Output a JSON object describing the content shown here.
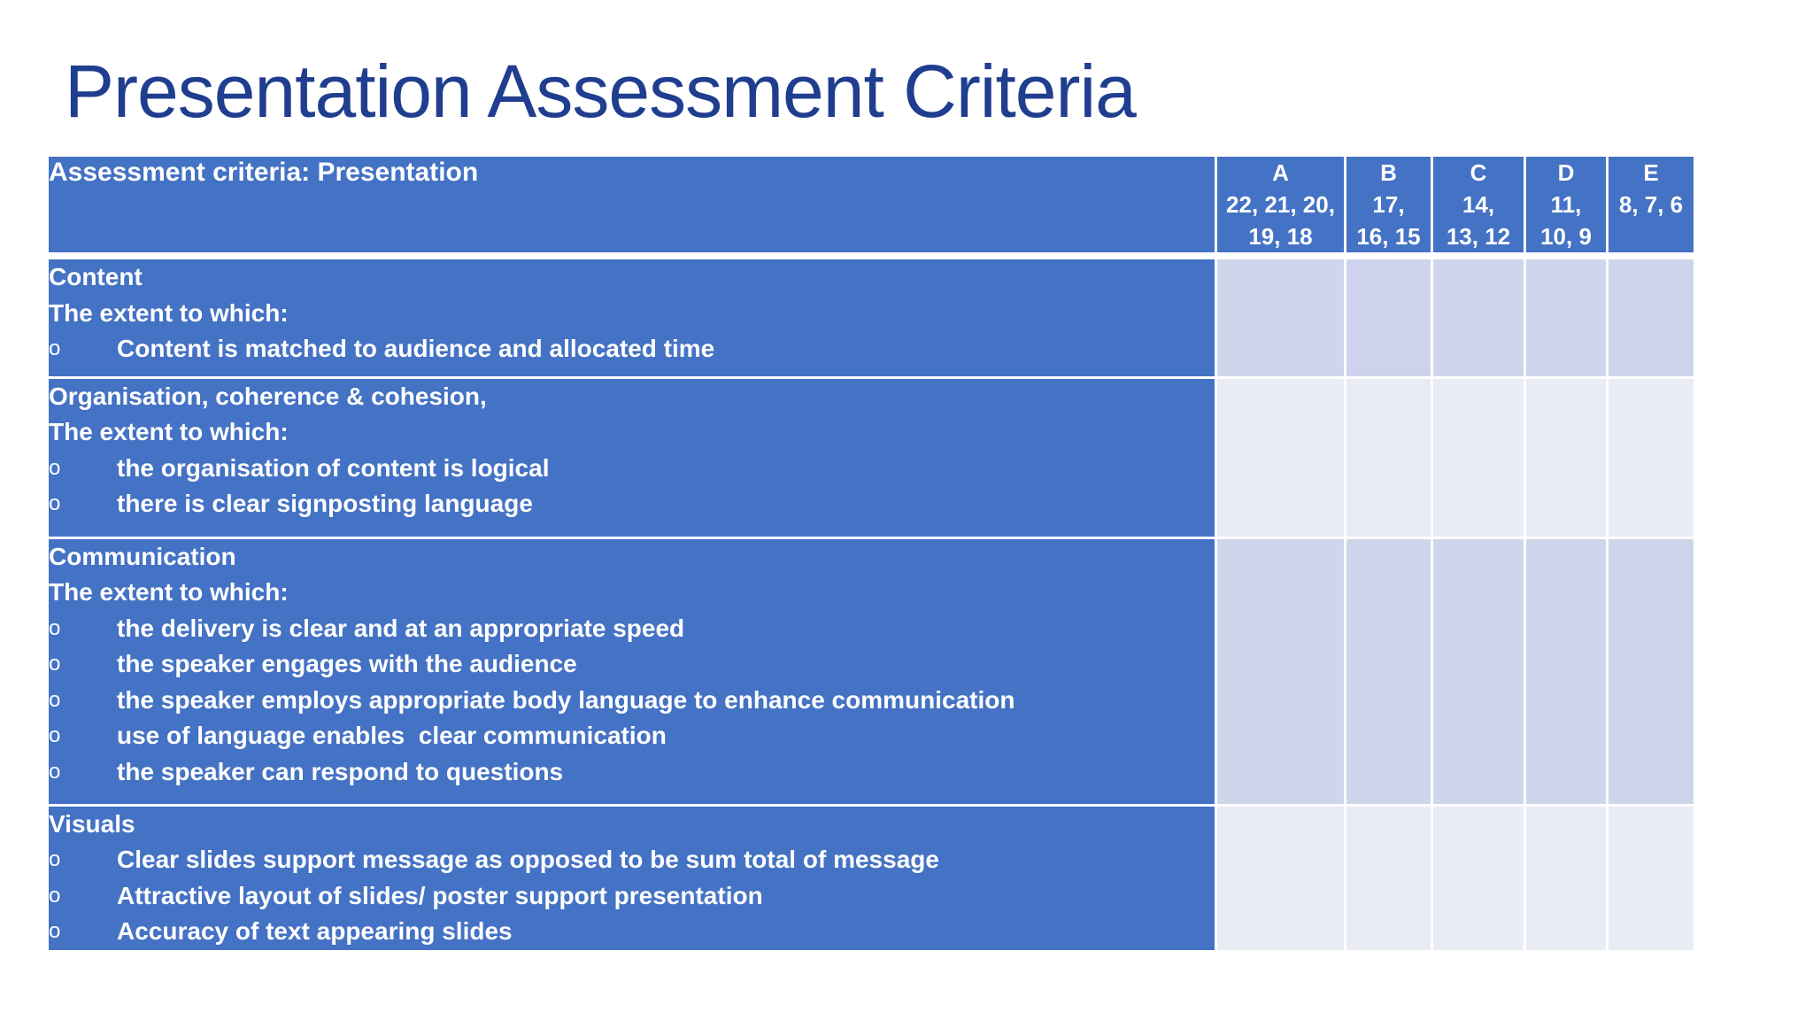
{
  "slide": {
    "title": "Presentation Assessment Criteria"
  },
  "table": {
    "header": {
      "criteria_label": "Assessment criteria: Presentation",
      "grades": [
        {
          "letter": "A",
          "range": "22, 21, 20,\n19, 18"
        },
        {
          "letter": "B",
          "range": "17,\n16, 15"
        },
        {
          "letter": "C",
          "range": "14,\n13, 12"
        },
        {
          "letter": "D",
          "range": "11,\n10, 9"
        },
        {
          "letter": "E",
          "range": "8, 7, 6"
        }
      ]
    },
    "sections": [
      {
        "heading": "Content",
        "intro": "The extent to which:",
        "bullet_symbol": "o",
        "bullets": [
          "Content is matched to audience and allocated time"
        ]
      },
      {
        "heading": "Organisation, coherence & cohesion,",
        "intro": "The extent to which:",
        "bullet_symbol": "o",
        "bullets": [
          "the organisation of content is logical",
          "there is clear signposting language"
        ]
      },
      {
        "heading": "Communication",
        "intro": "The extent to which:",
        "bullet_symbol": "o",
        "bullets": [
          "the delivery is clear and at an appropriate speed",
          "the speaker engages with the audience",
          "the speaker employs appropriate body language to enhance communication",
          "use of language enables  clear communication",
          "the speaker can respond to questions"
        ]
      },
      {
        "heading": "Visuals",
        "bullet_symbol": "o",
        "bullets": [
          "Clear slides support message as opposed to be sum total of message",
          "Attractive layout of slides/ poster support presentation",
          "Accuracy of text appearing slides"
        ]
      }
    ]
  },
  "colors": {
    "title": "#203e8f",
    "header_fill": "#4472c4",
    "score_dark": "#cfd5ea",
    "score_light": "#e9ebf5",
    "cell_text": "#ffffff"
  }
}
